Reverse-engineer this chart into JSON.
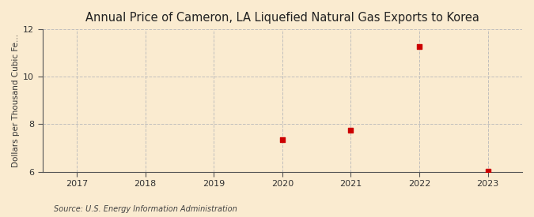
{
  "title": "Annual Price of Cameron, LA Liquefied Natural Gas Exports to Korea",
  "ylabel": "Dollars per Thousand Cubic Fe...",
  "source": "Source: U.S. Energy Information Administration",
  "x_values": [
    2020,
    2021,
    2022,
    2023
  ],
  "y_values": [
    7.35,
    7.75,
    11.25,
    6.02
  ],
  "xlim": [
    2016.5,
    2023.5
  ],
  "ylim": [
    6,
    12
  ],
  "yticks": [
    6,
    8,
    10,
    12
  ],
  "xticks": [
    2017,
    2018,
    2019,
    2020,
    2021,
    2022,
    2023
  ],
  "marker_color": "#cc0000",
  "marker_size": 5,
  "bg_color": "#faebd0",
  "plot_bg_color": "#faebd0",
  "grid_color": "#bbbbbb",
  "title_fontsize": 10.5,
  "label_fontsize": 7.5,
  "tick_fontsize": 8,
  "source_fontsize": 7
}
